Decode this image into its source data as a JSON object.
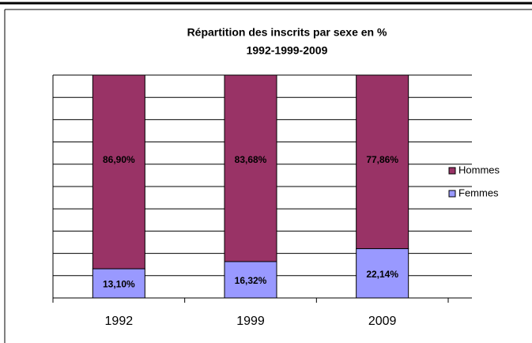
{
  "chart_data": {
    "type": "stacked_bar",
    "title": "Répartition des inscrits par sexe en %",
    "subtitle": "1992-1999-2009",
    "categories": [
      "1992",
      "1999",
      "2009"
    ],
    "series": [
      {
        "name": "Femmes",
        "color": "#9999ff",
        "values": [
          13.1,
          16.32,
          22.14
        ],
        "value_labels": [
          "13,10%",
          "16,32%",
          "22,14%"
        ]
      },
      {
        "name": "Hommes",
        "color": "#993366",
        "values": [
          86.9,
          83.68,
          77.86
        ],
        "value_labels": [
          "86,90%",
          "83,68%",
          "77,86%"
        ]
      }
    ],
    "ylim": [
      0,
      100
    ],
    "yticks": [
      0,
      10,
      20,
      30,
      40,
      50,
      60,
      70,
      80,
      90,
      100
    ],
    "grid": true,
    "legend": "right"
  }
}
